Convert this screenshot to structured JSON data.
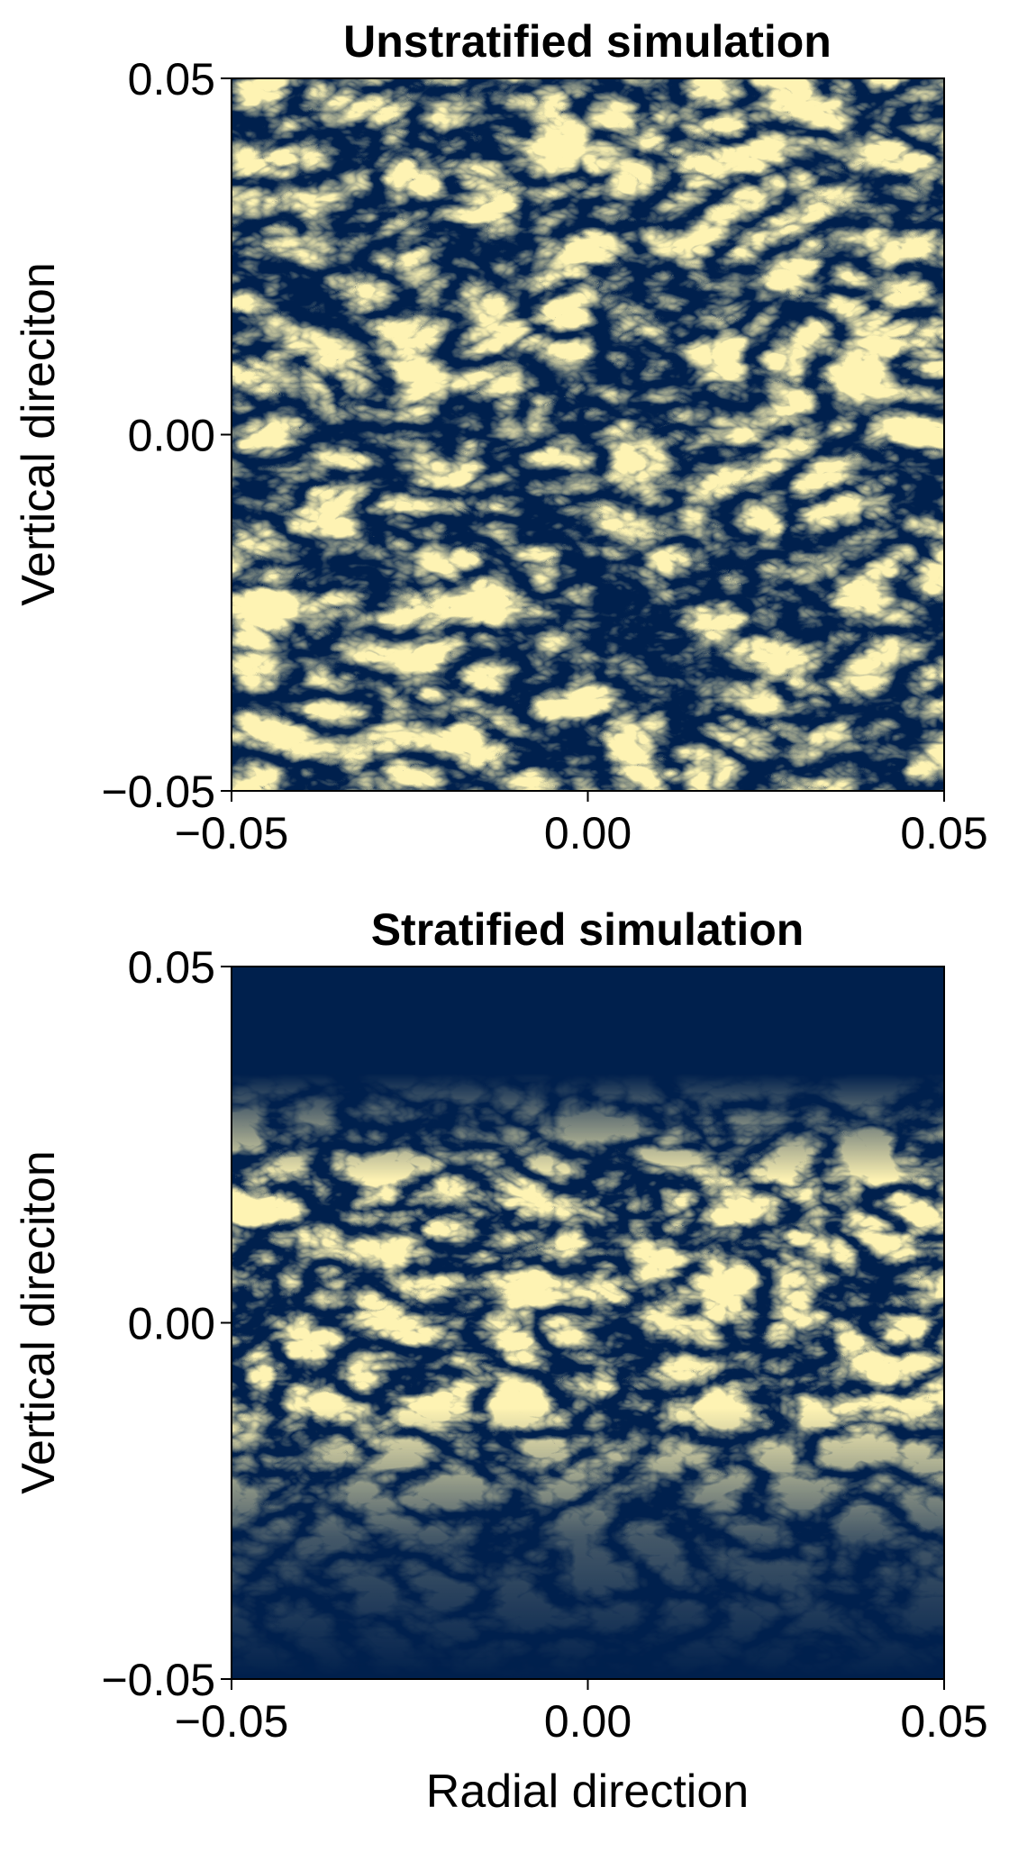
{
  "chart_data": [
    {
      "type": "heatmap",
      "title": "Unstratified simulation",
      "xlabel": "",
      "ylabel": "Vertical direciton",
      "xlim": [
        -0.05,
        0.05
      ],
      "ylim": [
        -0.05,
        0.05
      ],
      "xticks": [
        "−0.05",
        "0.00",
        "0.05"
      ],
      "yticks": [
        "−0.05",
        "0.00",
        "0.05"
      ],
      "colormap": {
        "low": "#00204d",
        "mid": "#7c7b78",
        "high": "#fee838"
      },
      "dust_layer": {
        "center": 0.0,
        "half_thickness": 0.05,
        "density": "high"
      },
      "grid": false,
      "legend": false
    },
    {
      "type": "heatmap",
      "title": "Stratified simulation",
      "xlabel": "Radial direction",
      "ylabel": "Vertical direciton",
      "xlim": [
        -0.05,
        0.05
      ],
      "ylim": [
        -0.05,
        0.05
      ],
      "xticks": [
        "−0.05",
        "0.00",
        "0.05"
      ],
      "yticks": [
        "−0.05",
        "0.00",
        "0.05"
      ],
      "colormap": {
        "low": "#00204d",
        "mid": "#7c7b78",
        "high": "#fee838"
      },
      "dust_layer": {
        "center": 0.0,
        "half_thickness": 0.025,
        "density": "medium"
      },
      "grid": false,
      "legend": false
    }
  ]
}
